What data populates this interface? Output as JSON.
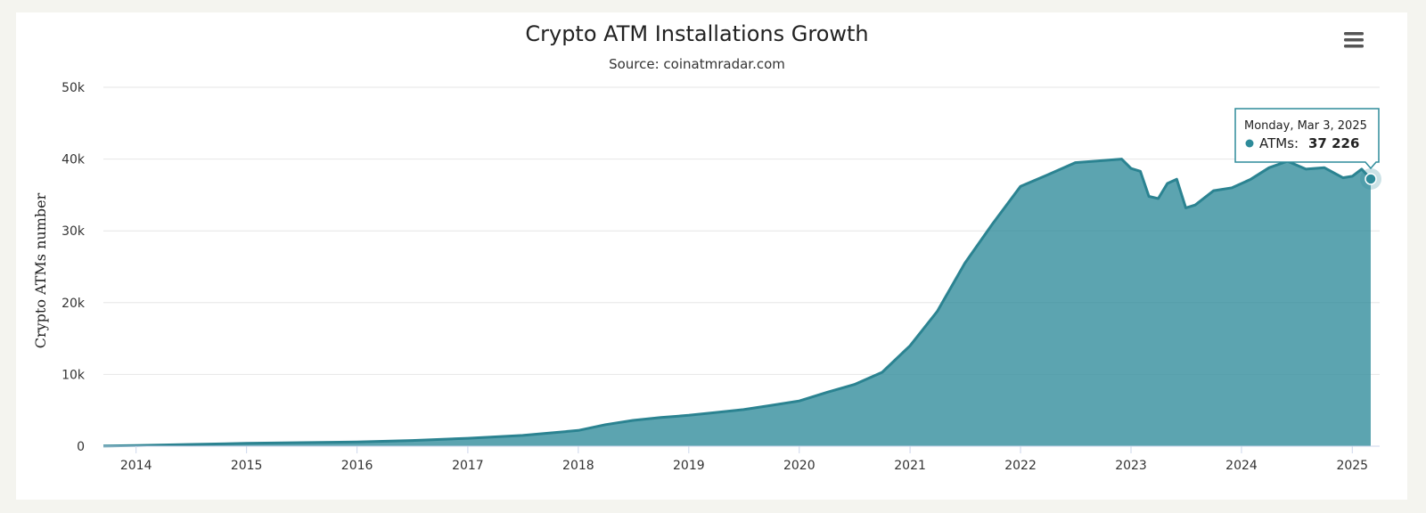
{
  "menu_icon": "hamburger-menu-icon",
  "chart_data": {
    "type": "area",
    "title": "Crypto ATM Installations Growth",
    "subtitle": "Source: coinatmradar.com",
    "ylabel": "Crypto ATMs number",
    "xlabel": "",
    "ylim": [
      0,
      50000
    ],
    "xlim": [
      "2013-09-15",
      "2025-03-03"
    ],
    "grid": true,
    "color": "#2e8b9a",
    "y_ticks": [
      "0",
      "10k",
      "20k",
      "30k",
      "40k",
      "50k"
    ],
    "x_ticks": [
      "2014",
      "2015",
      "2016",
      "2017",
      "2018",
      "2019",
      "2020",
      "2021",
      "2022",
      "2023",
      "2024",
      "2025"
    ],
    "series": [
      {
        "name": "ATMs",
        "x": [
          "2013-09-15",
          "2014-01-01",
          "2014-07-01",
          "2015-01-01",
          "2015-07-01",
          "2016-01-01",
          "2016-07-01",
          "2017-01-01",
          "2017-07-01",
          "2018-01-01",
          "2018-04-01",
          "2018-07-01",
          "2018-10-01",
          "2019-01-01",
          "2019-04-01",
          "2019-07-01",
          "2019-10-01",
          "2020-01-01",
          "2020-04-01",
          "2020-07-01",
          "2020-10-01",
          "2021-01-01",
          "2021-04-01",
          "2021-07-01",
          "2021-10-01",
          "2022-01-01",
          "2022-04-01",
          "2022-07-01",
          "2022-10-01",
          "2022-12-01",
          "2023-01-01",
          "2023-02-01",
          "2023-03-01",
          "2023-04-01",
          "2023-05-01",
          "2023-06-01",
          "2023-07-01",
          "2023-08-01",
          "2023-10-01",
          "2023-12-01",
          "2024-02-01",
          "2024-04-01",
          "2024-06-01",
          "2024-08-01",
          "2024-10-01",
          "2024-12-01",
          "2025-01-01",
          "2025-02-01",
          "2025-03-03"
        ],
        "y": [
          30,
          100,
          250,
          400,
          500,
          600,
          800,
          1100,
          1500,
          2200,
          3000,
          3600,
          4000,
          4300,
          4700,
          5100,
          5700,
          6300,
          7500,
          8600,
          10300,
          14000,
          18800,
          25500,
          31000,
          36200,
          37800,
          39500,
          39800,
          40000,
          38700,
          38300,
          34800,
          34500,
          36600,
          37200,
          33200,
          33600,
          35600,
          36000,
          37200,
          38800,
          39700,
          38600,
          38800,
          37400,
          37600,
          38600,
          37226
        ]
      }
    ],
    "tooltip": {
      "date": "Monday, Mar 3, 2025",
      "series": "ATMs",
      "value": "37 226"
    }
  }
}
